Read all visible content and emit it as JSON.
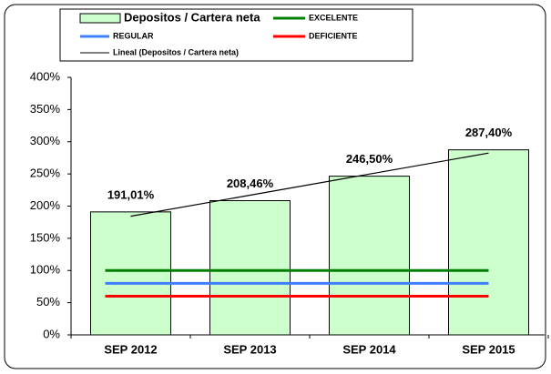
{
  "chart_data": {
    "type": "bar",
    "categories": [
      "SEP  2012",
      "SEP  2013",
      "SEP  2014",
      "SEP  2015"
    ],
    "series": [
      {
        "name": "Depositos / Cartera neta",
        "type": "bar",
        "color": "#ccffcc",
        "values": [
          191.01,
          208.46,
          246.5,
          287.4
        ],
        "value_labels": [
          "191,01%",
          "208,46%",
          "246,50%",
          "287,40%"
        ]
      },
      {
        "name": "EXCELENTE",
        "type": "line",
        "color": "#008000",
        "values": [
          100,
          100,
          100,
          100
        ]
      },
      {
        "name": "REGULAR",
        "type": "line",
        "color": "#3f7fff",
        "values": [
          80,
          80,
          80,
          80
        ]
      },
      {
        "name": "DEFICIENTE",
        "type": "line",
        "color": "#ff0000",
        "values": [
          60,
          60,
          60,
          60
        ]
      },
      {
        "name": "Lineal (Depositos / Cartera neta)",
        "type": "line",
        "color": "#000000",
        "values": [
          184.26,
          216.98,
          249.7,
          282.42
        ]
      }
    ],
    "ylim": [
      0,
      400
    ],
    "yticks": [
      {
        "value": 0,
        "label": "0%"
      },
      {
        "value": 50,
        "label": "50%"
      },
      {
        "value": 100,
        "label": "100%"
      },
      {
        "value": 150,
        "label": "150%"
      },
      {
        "value": 200,
        "label": "200%"
      },
      {
        "value": 250,
        "label": "250%"
      },
      {
        "value": 300,
        "label": "300%"
      },
      {
        "value": 350,
        "label": "350%"
      },
      {
        "value": 400,
        "label": "400%"
      }
    ],
    "grid": false
  }
}
